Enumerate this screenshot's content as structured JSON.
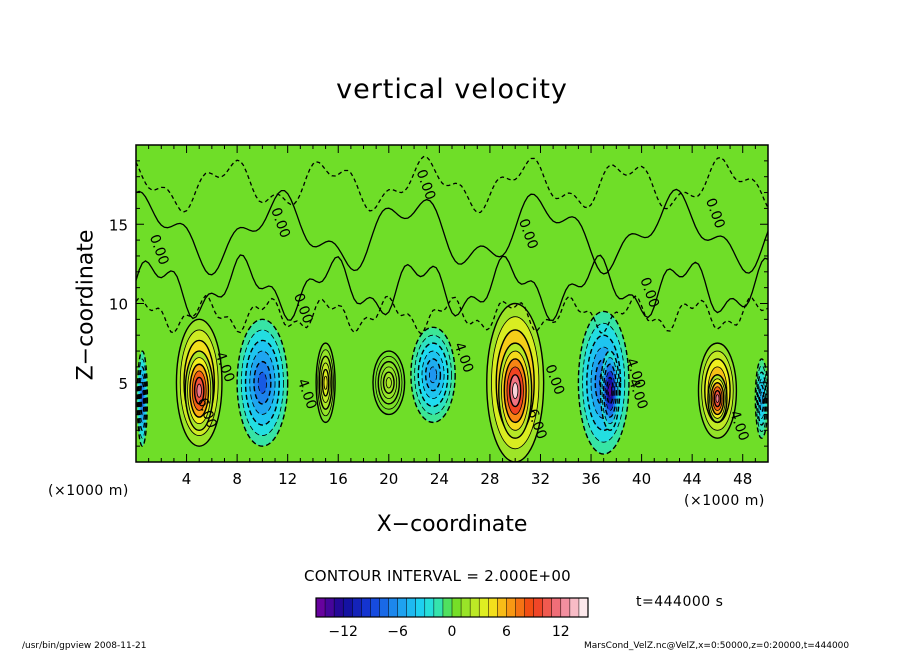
{
  "chart_data": {
    "type": "heatmap",
    "title": "vertical velocity",
    "xlabel": "X−coordinate",
    "ylabel": "Z−coordinate",
    "x_unit_label": "(×1000 m)",
    "y_unit_label": "(×1000 m)",
    "xlim": [
      0,
      50
    ],
    "ylim": [
      0,
      20
    ],
    "x_ticks": [
      4,
      8,
      12,
      16,
      20,
      24,
      28,
      32,
      36,
      40,
      44,
      48
    ],
    "y_ticks": [
      5,
      10,
      15
    ],
    "contour_interval_label": "CONTOUR INTERVAL = 2.000E+00",
    "contour_labels": [
      {
        "text": "4.00",
        "x": 6.7,
        "y": 5.9
      },
      {
        "text": "6.00",
        "x": 5.3,
        "y": 3.0
      },
      {
        "text": "4.00",
        "x": 13.2,
        "y": 4.2
      },
      {
        "text": "4.00",
        "x": 25.6,
        "y": 6.5
      },
      {
        "text": "0.00",
        "x": 32.8,
        "y": 5.1
      },
      {
        "text": "6.00",
        "x": 31.4,
        "y": 2.3
      },
      {
        "text": "4.00",
        "x": 39.2,
        "y": 5.5
      },
      {
        "text": "4.00",
        "x": 39.4,
        "y": 4.2
      },
      {
        "text": "0.00",
        "x": 11.1,
        "y": 15.0
      },
      {
        "text": "0.00",
        "x": 22.6,
        "y": 17.4
      },
      {
        "text": "0.00",
        "x": 30.7,
        "y": 14.3
      },
      {
        "text": "0.00",
        "x": 45.5,
        "y": 15.6
      },
      {
        "text": "0.00",
        "x": 1.5,
        "y": 13.3
      },
      {
        "text": "0.00",
        "x": 12.9,
        "y": 9.6
      },
      {
        "text": "0.00",
        "x": 40.3,
        "y": 10.6
      },
      {
        "text": "4.00",
        "x": 47.4,
        "y": 2.2
      }
    ],
    "cells": [
      {
        "x": 0.5,
        "z": 4,
        "w": 0.8,
        "h": 6,
        "v": -8
      },
      {
        "x": 5,
        "z": 5,
        "w": 3.6,
        "h": 8,
        "v": 9
      },
      {
        "x": 5,
        "z": 4.5,
        "w": 2.2,
        "h": 5,
        "v": 12
      },
      {
        "x": 10,
        "z": 5,
        "w": 4,
        "h": 8,
        "v": -8
      },
      {
        "x": 15,
        "z": 5,
        "w": 1.5,
        "h": 5,
        "v": 4
      },
      {
        "x": 20,
        "z": 5,
        "w": 2.5,
        "h": 4,
        "v": 2
      },
      {
        "x": 23.5,
        "z": 5.5,
        "w": 3.5,
        "h": 6,
        "v": -6
      },
      {
        "x": 30,
        "z": 5,
        "w": 4.5,
        "h": 10,
        "v": 10
      },
      {
        "x": 30,
        "z": 4.5,
        "w": 2.6,
        "h": 6,
        "v": 14
      },
      {
        "x": 37,
        "z": 5,
        "w": 4,
        "h": 9,
        "v": -8
      },
      {
        "x": 37.5,
        "z": 4.5,
        "w": 1.5,
        "h": 5,
        "v": -14
      },
      {
        "x": 46,
        "z": 4.5,
        "w": 3,
        "h": 6,
        "v": 8
      },
      {
        "x": 46,
        "z": 4,
        "w": 1.5,
        "h": 3,
        "v": 12
      },
      {
        "x": 49.5,
        "z": 4,
        "w": 1,
        "h": 5,
        "v": -5
      }
    ],
    "colorbar": {
      "min": -15,
      "max": 15,
      "step": 1,
      "ticks": [
        -12,
        -6,
        0,
        6,
        12
      ]
    },
    "time_label": "t=444000 s"
  },
  "footer": {
    "left": "/usr/bin/gpview   2008-11-21",
    "right": "MarsCond_VelZ.nc@VelZ,x=0:50000,z=0:20000,t=444000"
  },
  "colors": {
    "background": "#ffffff",
    "green": "#66dd22",
    "frame": "#000000"
  }
}
